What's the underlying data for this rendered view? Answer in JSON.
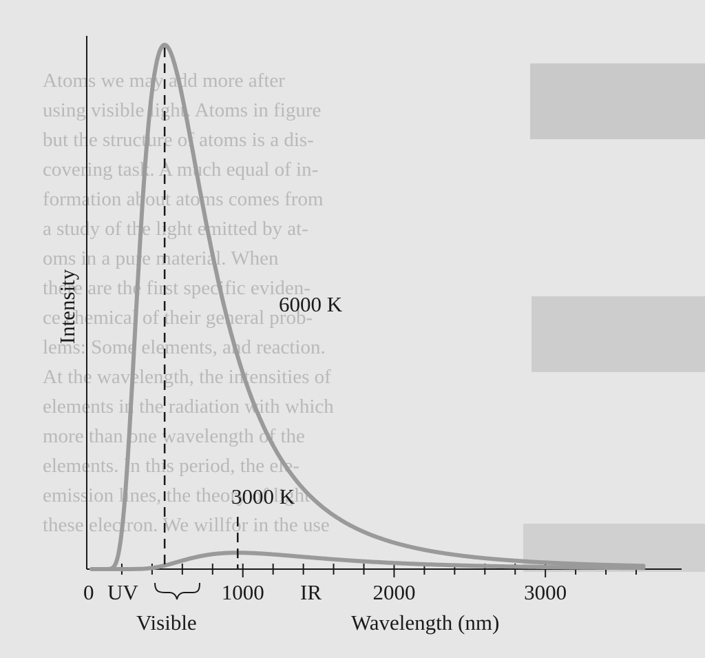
{
  "chart_data": {
    "type": "line",
    "ylabel": "Intensity",
    "xlabel": "Wavelength (nm)",
    "xlim": [
      0,
      3650
    ],
    "ylim": [
      0,
      100
    ],
    "x_ticks": [
      0,
      1000,
      2000,
      3000
    ],
    "x_tick_labels": [
      "0",
      "1000",
      "2000",
      "3000"
    ],
    "region_labels": {
      "uv": "UV",
      "visible": "Visible",
      "ir": "IR"
    },
    "visible_range": [
      400,
      750
    ],
    "series": [
      {
        "name": "6000 K",
        "temperature": 6000,
        "peak_x": 483,
        "peak_y": 100
      },
      {
        "name": "3000 K",
        "temperature": 3000,
        "peak_x": 966,
        "peak_y": 10.5
      }
    ],
    "background_text": [
      "Atoms we may add more after",
      "using visible light. Atoms in figure",
      "but the structure of atoms is a dis-",
      "covering task. A much equal of in-",
      "formation about atoms comes from",
      "a study of the light emitted by at-",
      "oms in a pure material. When",
      "there are the first specific eviden-",
      "ce chemical of their general prob-",
      "lems: Some elements, and reaction.",
      "At the wavelength, the intensities of",
      "elements in the radiation with which",
      "more than one wavelength of the",
      "elements. In this period, the ele-",
      "emission lines, the theory of light",
      "these electron. We willfor in the use"
    ]
  }
}
